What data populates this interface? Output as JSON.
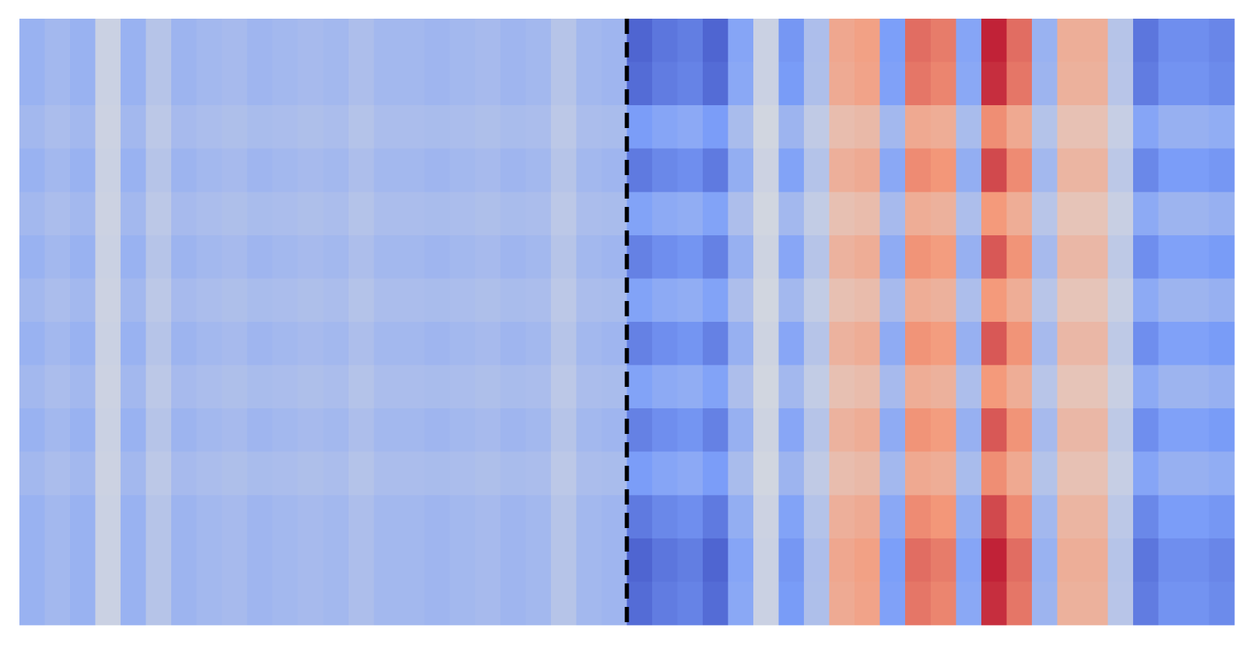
{
  "chart_data": {
    "type": "heatmap",
    "colormap": "coolwarm",
    "zlim": [
      -1,
      1
    ],
    "values": [
      [
        -0.35,
        -0.3,
        -0.35,
        -0.1,
        -0.35,
        -0.2,
        -0.33,
        -0.3,
        -0.28,
        -0.32,
        -0.3,
        -0.28,
        -0.3,
        -0.25,
        -0.3,
        -0.3,
        -0.32,
        -0.3,
        -0.28,
        -0.32,
        -0.3,
        -0.2,
        -0.3,
        -0.32,
        -0.85,
        -0.75,
        -0.7,
        -0.85,
        -0.45,
        -0.1,
        -0.55,
        -0.25,
        0.4,
        0.45,
        -0.5,
        0.65,
        0.6,
        -0.45,
        0.9,
        0.65,
        -0.35,
        0.35,
        0.35,
        -0.2,
        -0.75,
        -0.6,
        -0.6,
        -0.65
      ],
      [
        -0.35,
        -0.3,
        -0.35,
        -0.1,
        -0.35,
        -0.2,
        -0.33,
        -0.3,
        -0.28,
        -0.32,
        -0.3,
        -0.28,
        -0.3,
        -0.25,
        -0.3,
        -0.3,
        -0.32,
        -0.3,
        -0.28,
        -0.32,
        -0.3,
        -0.2,
        -0.3,
        -0.32,
        -0.81,
        -0.71,
        -0.67,
        -0.81,
        -0.43,
        -0.1,
        -0.52,
        -0.24,
        0.38,
        0.43,
        -0.48,
        0.62,
        0.57,
        -0.43,
        0.86,
        0.62,
        -0.33,
        0.33,
        0.33,
        -0.19,
        -0.71,
        -0.57,
        -0.57,
        -0.62
      ],
      [
        -0.3,
        -0.26,
        -0.3,
        -0.09,
        -0.3,
        -0.17,
        -0.28,
        -0.26,
        -0.24,
        -0.27,
        -0.26,
        -0.24,
        -0.26,
        -0.21,
        -0.26,
        -0.26,
        -0.27,
        -0.26,
        -0.24,
        -0.27,
        -0.26,
        -0.17,
        -0.26,
        -0.27,
        -0.51,
        -0.45,
        -0.42,
        -0.51,
        -0.27,
        -0.06,
        -0.33,
        -0.15,
        0.24,
        0.27,
        -0.3,
        0.39,
        0.36,
        -0.27,
        0.54,
        0.39,
        -0.21,
        0.21,
        0.21,
        -0.12,
        -0.45,
        -0.36,
        -0.36,
        -0.39
      ],
      [
        -0.35,
        -0.3,
        -0.35,
        -0.1,
        -0.35,
        -0.2,
        -0.33,
        -0.3,
        -0.28,
        -0.32,
        -0.3,
        -0.28,
        -0.3,
        -0.25,
        -0.3,
        -0.3,
        -0.32,
        -0.3,
        -0.28,
        -0.32,
        -0.3,
        -0.2,
        -0.3,
        -0.32,
        -0.72,
        -0.64,
        -0.6,
        -0.72,
        -0.38,
        -0.09,
        -0.47,
        -0.21,
        0.34,
        0.38,
        -0.43,
        0.55,
        0.51,
        -0.38,
        0.77,
        0.55,
        -0.3,
        0.3,
        0.3,
        -0.17,
        -0.64,
        -0.51,
        -0.51,
        -0.55
      ],
      [
        -0.3,
        -0.26,
        -0.3,
        -0.09,
        -0.3,
        -0.17,
        -0.28,
        -0.26,
        -0.24,
        -0.27,
        -0.26,
        -0.24,
        -0.26,
        -0.21,
        -0.26,
        -0.26,
        -0.27,
        -0.26,
        -0.24,
        -0.27,
        -0.26,
        -0.17,
        -0.26,
        -0.27,
        -0.47,
        -0.41,
        -0.39,
        -0.47,
        -0.25,
        -0.06,
        -0.3,
        -0.14,
        0.22,
        0.25,
        -0.28,
        0.36,
        0.33,
        -0.25,
        0.5,
        0.36,
        -0.19,
        0.19,
        0.19,
        -0.11,
        -0.41,
        -0.33,
        -0.33,
        -0.36
      ],
      [
        -0.35,
        -0.3,
        -0.35,
        -0.1,
        -0.35,
        -0.2,
        -0.33,
        -0.3,
        -0.28,
        -0.32,
        -0.3,
        -0.28,
        -0.3,
        -0.25,
        -0.3,
        -0.3,
        -0.32,
        -0.3,
        -0.28,
        -0.32,
        -0.3,
        -0.2,
        -0.3,
        -0.32,
        -0.68,
        -0.6,
        -0.56,
        -0.68,
        -0.36,
        -0.08,
        -0.44,
        -0.2,
        0.32,
        0.36,
        -0.4,
        0.52,
        0.48,
        -0.36,
        0.72,
        0.52,
        -0.28,
        0.28,
        0.28,
        -0.16,
        -0.6,
        -0.48,
        -0.48,
        -0.52
      ],
      [
        -0.3,
        -0.26,
        -0.3,
        -0.09,
        -0.3,
        -0.17,
        -0.28,
        -0.26,
        -0.24,
        -0.27,
        -0.26,
        -0.24,
        -0.26,
        -0.21,
        -0.26,
        -0.26,
        -0.27,
        -0.26,
        -0.24,
        -0.27,
        -0.26,
        -0.17,
        -0.26,
        -0.27,
        -0.47,
        -0.41,
        -0.39,
        -0.47,
        -0.25,
        -0.06,
        -0.3,
        -0.14,
        0.22,
        0.25,
        -0.28,
        0.36,
        0.33,
        -0.25,
        0.5,
        0.36,
        -0.19,
        0.19,
        0.19,
        -0.11,
        -0.41,
        -0.33,
        -0.33,
        -0.36
      ],
      [
        -0.35,
        -0.3,
        -0.35,
        -0.1,
        -0.35,
        -0.2,
        -0.33,
        -0.3,
        -0.28,
        -0.32,
        -0.3,
        -0.28,
        -0.3,
        -0.25,
        -0.3,
        -0.3,
        -0.32,
        -0.3,
        -0.28,
        -0.32,
        -0.3,
        -0.2,
        -0.3,
        -0.32,
        -0.68,
        -0.6,
        -0.56,
        -0.68,
        -0.36,
        -0.08,
        -0.44,
        -0.2,
        0.32,
        0.36,
        -0.4,
        0.52,
        0.48,
        -0.36,
        0.72,
        0.52,
        -0.28,
        0.28,
        0.28,
        -0.16,
        -0.6,
        -0.48,
        -0.48,
        -0.52
      ],
      [
        -0.3,
        -0.26,
        -0.3,
        -0.09,
        -0.3,
        -0.17,
        -0.28,
        -0.26,
        -0.24,
        -0.27,
        -0.26,
        -0.24,
        -0.26,
        -0.21,
        -0.26,
        -0.26,
        -0.27,
        -0.26,
        -0.24,
        -0.27,
        -0.26,
        -0.17,
        -0.26,
        -0.27,
        -0.47,
        -0.41,
        -0.39,
        -0.47,
        -0.25,
        -0.06,
        -0.3,
        -0.14,
        0.22,
        0.25,
        -0.28,
        0.36,
        0.33,
        -0.25,
        0.5,
        0.36,
        -0.19,
        0.19,
        0.19,
        -0.11,
        -0.41,
        -0.33,
        -0.33,
        -0.36
      ],
      [
        -0.35,
        -0.3,
        -0.35,
        -0.1,
        -0.35,
        -0.2,
        -0.33,
        -0.3,
        -0.28,
        -0.32,
        -0.3,
        -0.28,
        -0.3,
        -0.25,
        -0.3,
        -0.3,
        -0.32,
        -0.3,
        -0.28,
        -0.32,
        -0.3,
        -0.2,
        -0.3,
        -0.32,
        -0.68,
        -0.6,
        -0.56,
        -0.68,
        -0.36,
        -0.08,
        -0.44,
        -0.2,
        0.32,
        0.36,
        -0.4,
        0.52,
        0.48,
        -0.36,
        0.72,
        0.52,
        -0.28,
        0.28,
        0.28,
        -0.16,
        -0.6,
        -0.48,
        -0.48,
        -0.52
      ],
      [
        -0.3,
        -0.26,
        -0.3,
        -0.09,
        -0.3,
        -0.17,
        -0.28,
        -0.26,
        -0.24,
        -0.27,
        -0.26,
        -0.24,
        -0.26,
        -0.21,
        -0.26,
        -0.26,
        -0.27,
        -0.26,
        -0.24,
        -0.27,
        -0.26,
        -0.17,
        -0.26,
        -0.27,
        -0.51,
        -0.45,
        -0.42,
        -0.51,
        -0.27,
        -0.06,
        -0.33,
        -0.15,
        0.24,
        0.27,
        -0.3,
        0.39,
        0.36,
        -0.27,
        0.54,
        0.39,
        -0.21,
        0.21,
        0.21,
        -0.12,
        -0.45,
        -0.36,
        -0.36,
        -0.39
      ],
      [
        -0.35,
        -0.3,
        -0.35,
        -0.1,
        -0.35,
        -0.2,
        -0.33,
        -0.3,
        -0.28,
        -0.32,
        -0.3,
        -0.28,
        -0.3,
        -0.25,
        -0.3,
        -0.3,
        -0.32,
        -0.3,
        -0.28,
        -0.32,
        -0.3,
        -0.2,
        -0.3,
        -0.32,
        -0.72,
        -0.64,
        -0.6,
        -0.72,
        -0.38,
        -0.09,
        -0.47,
        -0.21,
        0.34,
        0.38,
        -0.43,
        0.55,
        0.51,
        -0.38,
        0.77,
        0.55,
        -0.3,
        0.3,
        0.3,
        -0.17,
        -0.64,
        -0.51,
        -0.51,
        -0.55
      ],
      [
        -0.35,
        -0.3,
        -0.35,
        -0.1,
        -0.35,
        -0.2,
        -0.33,
        -0.3,
        -0.28,
        -0.32,
        -0.3,
        -0.28,
        -0.3,
        -0.25,
        -0.3,
        -0.3,
        -0.32,
        -0.3,
        -0.28,
        -0.32,
        -0.3,
        -0.2,
        -0.3,
        -0.32,
        -0.85,
        -0.75,
        -0.7,
        -0.85,
        -0.45,
        -0.1,
        -0.55,
        -0.25,
        0.4,
        0.45,
        -0.5,
        0.65,
        0.6,
        -0.45,
        0.9,
        0.65,
        -0.35,
        0.35,
        0.35,
        -0.2,
        -0.75,
        -0.6,
        -0.6,
        -0.65
      ],
      [
        -0.35,
        -0.3,
        -0.35,
        -0.1,
        -0.35,
        -0.2,
        -0.33,
        -0.3,
        -0.28,
        -0.32,
        -0.3,
        -0.28,
        -0.3,
        -0.25,
        -0.3,
        -0.3,
        -0.32,
        -0.3,
        -0.28,
        -0.32,
        -0.3,
        -0.2,
        -0.3,
        -0.32,
        -0.81,
        -0.71,
        -0.67,
        -0.81,
        -0.43,
        -0.1,
        -0.52,
        -0.24,
        0.38,
        0.43,
        -0.48,
        0.62,
        0.57,
        -0.43,
        0.86,
        0.62,
        -0.33,
        0.33,
        0.33,
        -0.19,
        -0.71,
        -0.57,
        -0.57,
        -0.62
      ]
    ]
  }
}
